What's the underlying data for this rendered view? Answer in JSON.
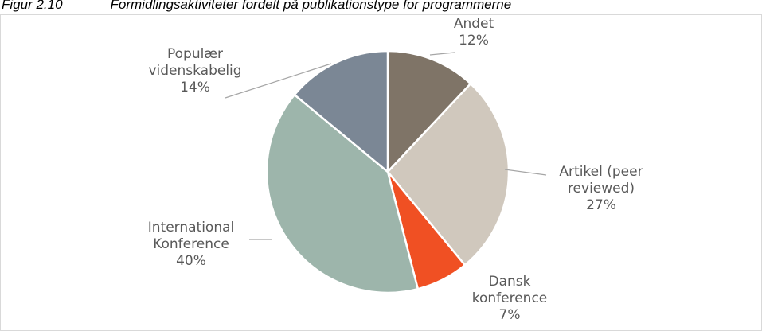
{
  "chart_data": {
    "type": "pie",
    "figure_label": "Figur 2.10",
    "title": "Formidlingsaktiviteter fordelt på publikationstype for programmerne",
    "categories": [
      "Andet",
      "Artikel (peer reviewed)",
      "Dansk konference",
      "International Konference",
      "Populær videnskabelig"
    ],
    "values": [
      12,
      27,
      7,
      40,
      14
    ],
    "value_labels": [
      "12%",
      "27%",
      "7%",
      "40%",
      "14%"
    ],
    "colors": [
      "#7f7467",
      "#d0c8bd",
      "#f05023",
      "#9db5ab",
      "#7b8795"
    ]
  }
}
